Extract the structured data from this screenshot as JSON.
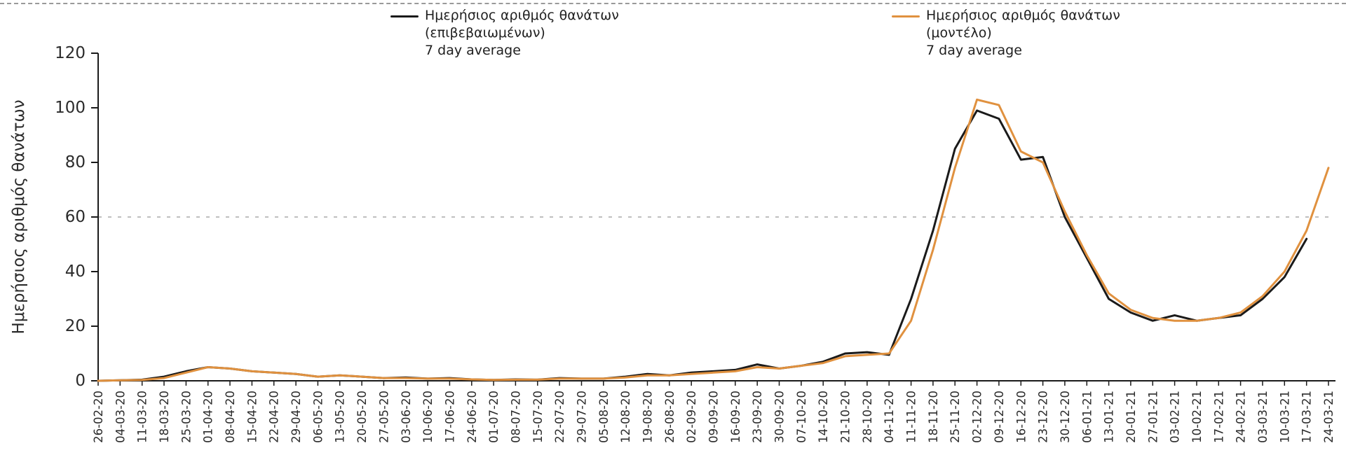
{
  "legend": {
    "entries": [
      {
        "line1": "Ημερήσιος αριθμός θανάτων",
        "line2": "(επιβεβαιωμένων)",
        "line3": "7 day average",
        "color": "#1a1a1a"
      },
      {
        "line1": "Ημερήσιος αριθμός θανάτων",
        "line2": "(μοντέλο)",
        "line3": "7 day average",
        "color": "#e0913f"
      }
    ]
  },
  "chart_data": {
    "type": "line",
    "title": "",
    "xlabel": "",
    "ylabel": "Ημερήσιος αριθμός θανάτων",
    "ylim": [
      0,
      120
    ],
    "yticks": [
      0,
      20,
      40,
      60,
      80,
      100,
      120
    ],
    "gridline_y": 60,
    "legend_position": "top",
    "x": [
      "26-02-20",
      "04-03-20",
      "11-03-20",
      "18-03-20",
      "25-03-20",
      "01-04-20",
      "08-04-20",
      "15-04-20",
      "22-04-20",
      "29-04-20",
      "06-05-20",
      "13-05-20",
      "20-05-20",
      "27-05-20",
      "03-06-20",
      "10-06-20",
      "17-06-20",
      "24-06-20",
      "01-07-20",
      "08-07-20",
      "15-07-20",
      "22-07-20",
      "29-07-20",
      "05-08-20",
      "12-08-20",
      "19-08-20",
      "26-08-20",
      "02-09-20",
      "09-09-20",
      "16-09-20",
      "23-09-20",
      "30-09-20",
      "07-10-20",
      "14-10-20",
      "21-10-20",
      "28-10-20",
      "04-11-20",
      "11-11-20",
      "18-11-20",
      "25-11-20",
      "02-12-20",
      "09-12-20",
      "16-12-20",
      "23-12-20",
      "30-12-20",
      "06-01-21",
      "13-01-21",
      "20-01-21",
      "27-01-21",
      "03-02-21",
      "10-02-21",
      "17-02-21",
      "24-02-21",
      "03-03-21",
      "10-03-21",
      "17-03-21",
      "24-03-21"
    ],
    "series": [
      {
        "name": "Ημερήσιος αριθμός θανάτων (επιβεβαιωμένων) 7 day average",
        "color": "#1a1a1a",
        "values": [
          0,
          0.2,
          0.4,
          1.5,
          3.5,
          5,
          4.5,
          3.5,
          3,
          2.5,
          1.5,
          2,
          1.5,
          1,
          1.2,
          0.8,
          1,
          0.5,
          0.3,
          0.5,
          0.4,
          1,
          0.8,
          0.8,
          1.5,
          2.5,
          2,
          3,
          3.5,
          4,
          6,
          4.5,
          5.5,
          7,
          10,
          10.5,
          9.5,
          30,
          55,
          85,
          99,
          96,
          81,
          82,
          60,
          45,
          30,
          25,
          22,
          24,
          22,
          23,
          24,
          30,
          38,
          52,
          null
        ]
      },
      {
        "name": "Ημερήσιος αριθμός θανάτων (μοντέλο) 7 day average",
        "color": "#e0913f",
        "values": [
          0,
          0.2,
          0.3,
          1,
          3,
          5,
          4.5,
          3.5,
          3,
          2.5,
          1.5,
          2,
          1.5,
          1,
          1,
          0.8,
          0.8,
          0.5,
          0.3,
          0.4,
          0.4,
          0.8,
          0.8,
          0.8,
          1.2,
          2,
          2,
          2.5,
          3,
          3.5,
          5,
          4.5,
          5.5,
          6.5,
          9,
          9.5,
          10,
          22,
          48,
          78,
          103,
          101,
          84,
          80,
          62,
          46,
          32,
          26,
          23,
          22,
          22,
          23,
          25,
          31,
          40,
          55,
          78
        ]
      }
    ]
  }
}
